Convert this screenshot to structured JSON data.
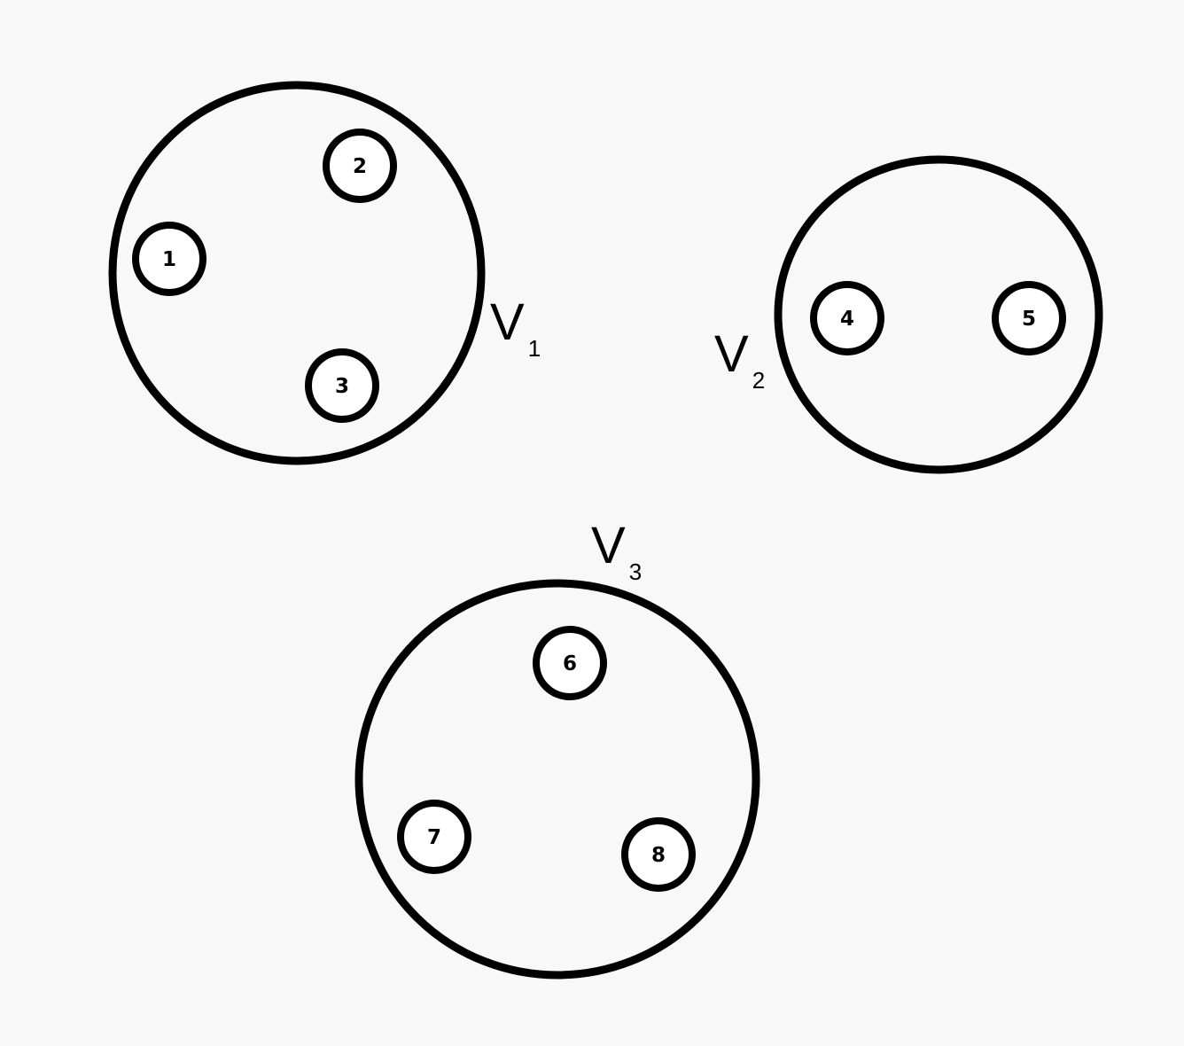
{
  "groups": [
    {
      "label": "V",
      "subscript": "1",
      "nodes": [
        "1",
        "2",
        "3"
      ]
    },
    {
      "label": "V",
      "subscript": "2",
      "nodes": [
        "4",
        "5"
      ]
    },
    {
      "label": "V",
      "subscript": "3",
      "nodes": [
        "6",
        "7",
        "8"
      ]
    }
  ],
  "colors": {
    "background": "#f8f8f8",
    "stroke": "#000000",
    "node_fill": "#ffffff"
  }
}
